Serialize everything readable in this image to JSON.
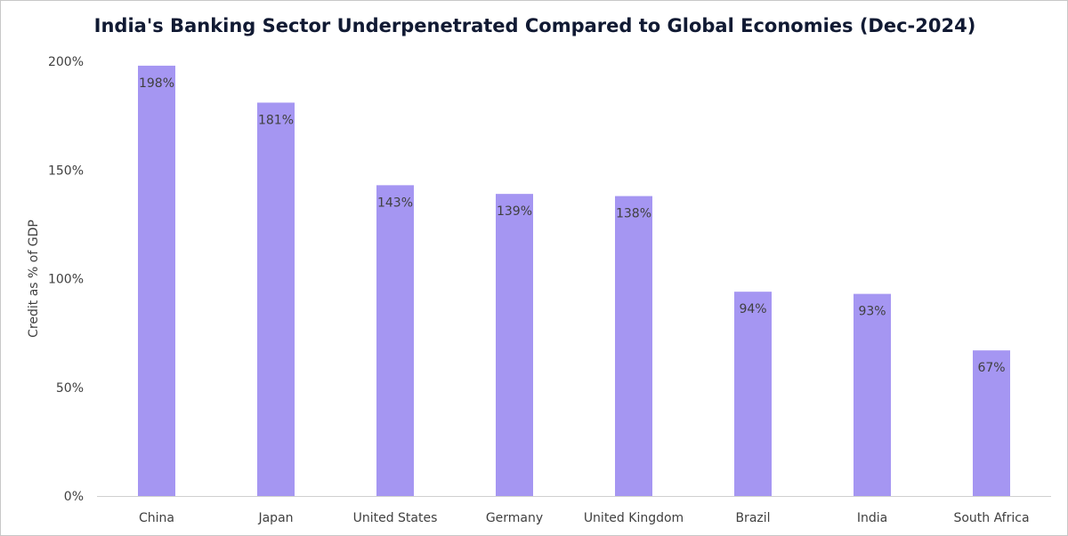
{
  "chart_data": {
    "type": "bar",
    "title": "India's Banking Sector Underpenetrated Compared to Global Economies (Dec-2024)",
    "ylabel": "Credit as % of GDP",
    "xlabel": "",
    "ylim": [
      0,
      200
    ],
    "yticks": [
      "0%",
      "50%",
      "100%",
      "150%",
      "200%"
    ],
    "ytick_values": [
      0,
      50,
      100,
      150,
      200
    ],
    "categories": [
      "China",
      "Japan",
      "United States",
      "Germany",
      "United Kingdom",
      "Brazil",
      "India",
      "South Africa"
    ],
    "values": [
      198,
      181,
      143,
      139,
      138,
      94,
      93,
      67
    ],
    "data_labels": [
      "198%",
      "181%",
      "143%",
      "139%",
      "138%",
      "94%",
      "93%",
      "67%"
    ],
    "bar_color": "#a596f2",
    "grid": false,
    "legend": "none"
  }
}
